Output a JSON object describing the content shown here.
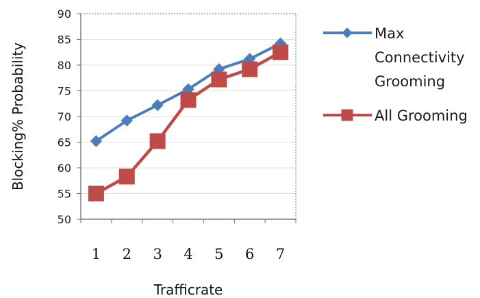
{
  "chart_data": {
    "type": "line",
    "categories": [
      "1",
      "2",
      "3",
      "4",
      "5",
      "6",
      "7"
    ],
    "series": [
      {
        "name": "Max Connectivity Grooming",
        "name_lines": [
          "Max",
          "Connectivity",
          "Grooming"
        ],
        "values": [
          65.2,
          69.2,
          72.2,
          75.3,
          79.2,
          81.2,
          84.2
        ],
        "color": "#4a7ebb",
        "marker": "diamond"
      },
      {
        "name": "All Grooming",
        "name_lines": [
          "All Grooming"
        ],
        "values": [
          55.0,
          58.3,
          65.2,
          73.2,
          77.2,
          79.2,
          82.5
        ],
        "color": "#be4b48",
        "marker": "square"
      }
    ],
    "xlabel": "Trafficrate",
    "ylabel": "Blocking% Probability",
    "ylim": [
      50,
      90
    ],
    "yticks": [
      "50",
      "55",
      "60",
      "65",
      "70",
      "75",
      "80",
      "85",
      "90"
    ],
    "grid": true,
    "legend": "right"
  }
}
